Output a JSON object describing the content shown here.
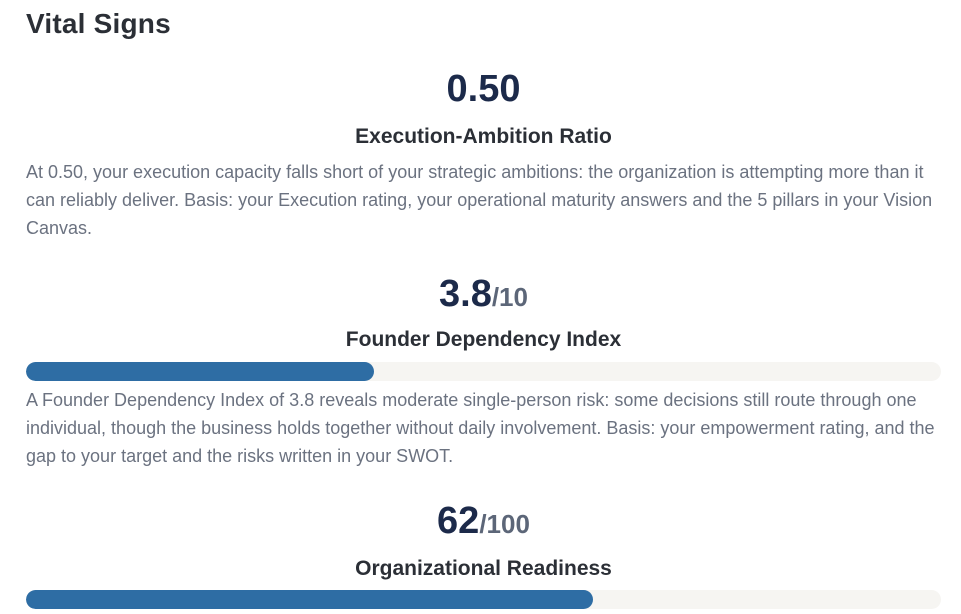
{
  "section": {
    "title": "Vital Signs"
  },
  "metrics": [
    {
      "value": "0.50",
      "suffix": "",
      "label": "Execution-Ambition Ratio",
      "description": "At 0.50, your execution capacity falls short of your strategic ambitions: the organization is attempting more than it can reliably deliver. Basis: your Execution rating, your operational maturity answers and the 5 pillars in your Vision Canvas."
    },
    {
      "value": "3.8",
      "suffix": "/10",
      "label": "Founder Dependency Index",
      "progress_fraction": 0.38,
      "description": "A Founder Dependency Index of 3.8 reveals moderate single-person risk: some decisions still route through one individual, though the business holds together without daily involvement. Basis: your empowerment rating, and the gap to your target and the risks written in your SWOT."
    },
    {
      "value": "62",
      "suffix": "/100",
      "label": "Organizational Readiness",
      "progress_fraction": 0.62
    }
  ],
  "colors": {
    "bar_fill": "#2e6da4",
    "bar_track": "#f6f5f2",
    "value_text": "#1c2a4a"
  }
}
